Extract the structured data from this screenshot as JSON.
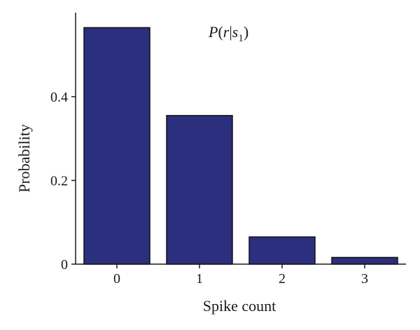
{
  "chart_data": {
    "type": "bar",
    "title_parts": {
      "p": "P",
      "open": "(",
      "r": "r",
      "bar": "|",
      "s": "s",
      "sub": "1",
      "close": ")"
    },
    "categories": [
      "0",
      "1",
      "2",
      "3"
    ],
    "values": [
      0.565,
      0.355,
      0.065,
      0.016
    ],
    "xlabel": "Spike count",
    "ylabel": "Probability",
    "ylim": [
      0,
      0.6
    ],
    "yticks": [
      0,
      0.2,
      0.4
    ],
    "ytick_labels": [
      "0",
      "0.2",
      "0.4"
    ],
    "grid": false,
    "legend": "none",
    "bar_color": "#2b2f7e"
  }
}
